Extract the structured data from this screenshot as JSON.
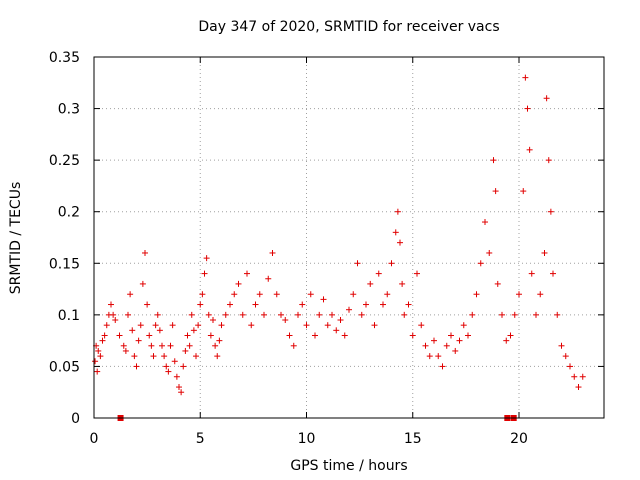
{
  "chart_data": {
    "type": "scatter",
    "title": "Day 347 of 2020, SRMTID for receiver vacs",
    "xlabel": "GPS time / hours",
    "ylabel": "SRMTID / TECUs",
    "xlim": [
      0,
      24
    ],
    "ylim": [
      0,
      0.35
    ],
    "xticks": [
      0,
      5,
      10,
      15,
      20
    ],
    "xtick_labels": [
      "0",
      "5",
      "10",
      "15",
      "20"
    ],
    "yticks": [
      0,
      0.05,
      0.1,
      0.15,
      0.2,
      0.25,
      0.3,
      0.35
    ],
    "ytick_labels": [
      "0",
      "0.05",
      "0.1",
      "0.15",
      "0.2",
      "0.25",
      "0.3",
      "0.35"
    ],
    "grid": true,
    "marker": "plus",
    "color": "#e00000",
    "series": [
      {
        "name": "SRMTID",
        "points": [
          [
            0.05,
            0.055
          ],
          [
            0.1,
            0.07
          ],
          [
            0.15,
            0.045
          ],
          [
            0.2,
            0.065
          ],
          [
            0.3,
            0.06
          ],
          [
            0.4,
            0.075
          ],
          [
            0.5,
            0.08
          ],
          [
            0.6,
            0.09
          ],
          [
            0.7,
            0.1
          ],
          [
            0.8,
            0.11
          ],
          [
            0.9,
            0.1
          ],
          [
            1.0,
            0.095
          ],
          [
            1.2,
            0.08
          ],
          [
            1.4,
            0.07
          ],
          [
            1.5,
            0.065
          ],
          [
            1.6,
            0.1
          ],
          [
            1.7,
            0.12
          ],
          [
            1.8,
            0.085
          ],
          [
            1.9,
            0.06
          ],
          [
            2.0,
            0.05
          ],
          [
            2.1,
            0.075
          ],
          [
            2.2,
            0.09
          ],
          [
            2.3,
            0.13
          ],
          [
            2.4,
            0.16
          ],
          [
            2.5,
            0.11
          ],
          [
            2.6,
            0.08
          ],
          [
            2.7,
            0.07
          ],
          [
            2.8,
            0.06
          ],
          [
            2.9,
            0.09
          ],
          [
            3.0,
            0.1
          ],
          [
            3.1,
            0.085
          ],
          [
            3.2,
            0.07
          ],
          [
            3.3,
            0.06
          ],
          [
            3.4,
            0.05
          ],
          [
            3.5,
            0.045
          ],
          [
            3.6,
            0.07
          ],
          [
            3.7,
            0.09
          ],
          [
            3.8,
            0.055
          ],
          [
            3.9,
            0.04
          ],
          [
            4.0,
            0.03
          ],
          [
            4.1,
            0.025
          ],
          [
            4.2,
            0.05
          ],
          [
            4.3,
            0.065
          ],
          [
            4.4,
            0.08
          ],
          [
            4.5,
            0.07
          ],
          [
            4.6,
            0.1
          ],
          [
            4.7,
            0.085
          ],
          [
            4.8,
            0.06
          ],
          [
            4.9,
            0.09
          ],
          [
            5.0,
            0.11
          ],
          [
            5.1,
            0.12
          ],
          [
            5.2,
            0.14
          ],
          [
            5.3,
            0.155
          ],
          [
            5.4,
            0.1
          ],
          [
            5.5,
            0.08
          ],
          [
            5.6,
            0.095
          ],
          [
            5.7,
            0.07
          ],
          [
            5.8,
            0.06
          ],
          [
            5.9,
            0.075
          ],
          [
            6.0,
            0.09
          ],
          [
            6.2,
            0.1
          ],
          [
            6.4,
            0.11
          ],
          [
            6.6,
            0.12
          ],
          [
            6.8,
            0.13
          ],
          [
            7.0,
            0.1
          ],
          [
            7.2,
            0.14
          ],
          [
            7.4,
            0.09
          ],
          [
            7.6,
            0.11
          ],
          [
            7.8,
            0.12
          ],
          [
            8.0,
            0.1
          ],
          [
            8.2,
            0.135
          ],
          [
            8.4,
            0.16
          ],
          [
            8.6,
            0.12
          ],
          [
            8.8,
            0.1
          ],
          [
            9.0,
            0.095
          ],
          [
            9.2,
            0.08
          ],
          [
            9.4,
            0.07
          ],
          [
            9.6,
            0.1
          ],
          [
            9.8,
            0.11
          ],
          [
            10.0,
            0.09
          ],
          [
            10.2,
            0.12
          ],
          [
            10.4,
            0.08
          ],
          [
            10.6,
            0.1
          ],
          [
            10.8,
            0.115
          ],
          [
            11.0,
            0.09
          ],
          [
            11.2,
            0.1
          ],
          [
            11.4,
            0.085
          ],
          [
            11.6,
            0.095
          ],
          [
            11.8,
            0.08
          ],
          [
            12.0,
            0.105
          ],
          [
            12.2,
            0.12
          ],
          [
            12.4,
            0.15
          ],
          [
            12.6,
            0.1
          ],
          [
            12.8,
            0.11
          ],
          [
            13.0,
            0.13
          ],
          [
            13.2,
            0.09
          ],
          [
            13.4,
            0.14
          ],
          [
            13.6,
            0.11
          ],
          [
            13.8,
            0.12
          ],
          [
            14.0,
            0.15
          ],
          [
            14.2,
            0.18
          ],
          [
            14.3,
            0.2
          ],
          [
            14.4,
            0.17
          ],
          [
            14.5,
            0.13
          ],
          [
            14.6,
            0.1
          ],
          [
            14.8,
            0.11
          ],
          [
            15.0,
            0.08
          ],
          [
            15.2,
            0.14
          ],
          [
            15.4,
            0.09
          ],
          [
            15.6,
            0.07
          ],
          [
            15.8,
            0.06
          ],
          [
            16.0,
            0.075
          ],
          [
            16.2,
            0.06
          ],
          [
            16.4,
            0.05
          ],
          [
            16.6,
            0.07
          ],
          [
            16.8,
            0.08
          ],
          [
            17.0,
            0.065
          ],
          [
            17.2,
            0.075
          ],
          [
            17.4,
            0.09
          ],
          [
            17.6,
            0.08
          ],
          [
            17.8,
            0.1
          ],
          [
            18.0,
            0.12
          ],
          [
            18.2,
            0.15
          ],
          [
            18.4,
            0.19
          ],
          [
            18.6,
            0.16
          ],
          [
            18.8,
            0.25
          ],
          [
            18.9,
            0.22
          ],
          [
            19.0,
            0.13
          ],
          [
            19.2,
            0.1
          ],
          [
            19.4,
            0.075
          ],
          [
            19.6,
            0.08
          ],
          [
            19.8,
            0.1
          ],
          [
            20.0,
            0.12
          ],
          [
            20.2,
            0.22
          ],
          [
            20.3,
            0.33
          ],
          [
            20.4,
            0.3
          ],
          [
            20.5,
            0.26
          ],
          [
            20.6,
            0.14
          ],
          [
            20.8,
            0.1
          ],
          [
            21.0,
            0.12
          ],
          [
            21.2,
            0.16
          ],
          [
            21.3,
            0.31
          ],
          [
            21.4,
            0.25
          ],
          [
            21.5,
            0.2
          ],
          [
            21.6,
            0.14
          ],
          [
            21.8,
            0.1
          ],
          [
            22.0,
            0.07
          ],
          [
            22.2,
            0.06
          ],
          [
            22.4,
            0.05
          ],
          [
            22.6,
            0.04
          ],
          [
            22.8,
            0.03
          ],
          [
            23.0,
            0.04
          ]
        ]
      }
    ],
    "zero_flags_x": [
      1.25,
      19.45,
      19.75
    ]
  }
}
